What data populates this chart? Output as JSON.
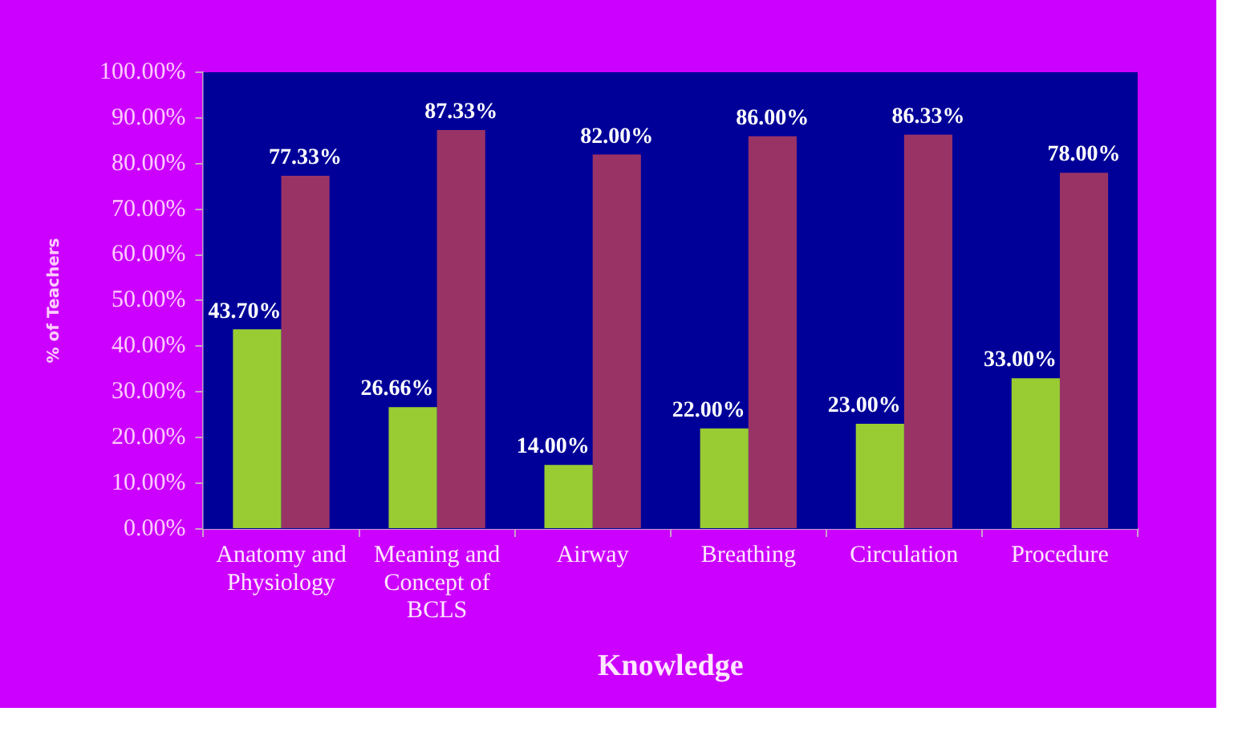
{
  "chart_data": {
    "type": "bar",
    "xlabel": "Knowledge",
    "ylabel": "% of Teachers",
    "categories": [
      "Anatomy and Physiology",
      "Meaning and Concept of BCLS",
      "Airway",
      "Breathing",
      "Circulation",
      "Procedure"
    ],
    "series": [
      {
        "color": "#99cc33",
        "values": [
          43.7,
          26.66,
          14,
          22,
          23,
          33
        ],
        "value_labels": [
          "43.70%",
          "26.66%",
          "14.00%",
          "22.00%",
          "23.00%",
          "33.00%"
        ]
      },
      {
        "color": "#993366",
        "values": [
          77.33,
          87.33,
          82,
          86,
          86.33,
          78
        ],
        "value_labels": [
          "77.33%",
          "87.33%",
          "82.00%",
          "86.00%",
          "86.33%",
          "78.00%"
        ]
      }
    ],
    "ylim": [
      0,
      100
    ],
    "yticks": [
      {
        "value": 0,
        "label": "0.00%"
      },
      {
        "value": 10,
        "label": "10.00%"
      },
      {
        "value": 20,
        "label": "20.00%"
      },
      {
        "value": 30,
        "label": "30.00%"
      },
      {
        "value": 40,
        "label": "40.00%"
      },
      {
        "value": 50,
        "label": "50.00%"
      },
      {
        "value": 60,
        "label": "60.00%"
      },
      {
        "value": 70,
        "label": "70.00%"
      },
      {
        "value": 80,
        "label": "80.00%"
      },
      {
        "value": 90,
        "label": "90.00%"
      },
      {
        "value": 100,
        "label": "100.00%"
      }
    ],
    "grid": false,
    "legend": false
  }
}
